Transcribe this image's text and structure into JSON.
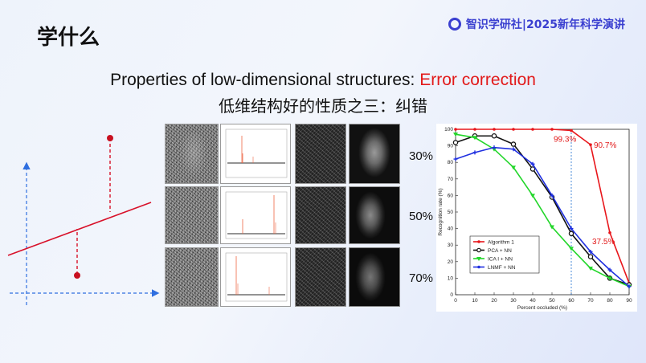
{
  "header": {
    "title": "学什么",
    "logo_text": "智识学研社|2025新年科学演讲"
  },
  "headline": {
    "prefix": "Properties of low-dimensional structures: ",
    "highlight": "Error correction",
    "subtitle": "低维结构好的性质之三：纠错"
  },
  "rows": [
    {
      "label": "30%"
    },
    {
      "label": "50%"
    },
    {
      "label": "70%"
    }
  ],
  "colors": {
    "accent_red": "#e21a1a",
    "logo_blue": "#3a3fd0",
    "diagram_blue": "#2f6fe0",
    "diagram_red": "#d8112a"
  },
  "chart_data": {
    "type": "line",
    "xlabel": "Percent occluded (%)",
    "ylabel": "Recognition rate (%)",
    "x": [
      0,
      10,
      20,
      30,
      40,
      50,
      60,
      70,
      80,
      90
    ],
    "xlim": [
      0,
      90
    ],
    "ylim": [
      0,
      100
    ],
    "xticks": [
      "0",
      "10",
      "20",
      "30",
      "40",
      "50",
      "60",
      "70",
      "80",
      "90"
    ],
    "yticks": [
      "0",
      "10",
      "20",
      "30",
      "40",
      "50",
      "60",
      "70",
      "80",
      "90",
      "100"
    ],
    "legend_position": "bottom-left",
    "series": [
      {
        "name": "Algorithm 1",
        "color": "#e8161b",
        "marker": "dot",
        "values": [
          100,
          100,
          100,
          100,
          100,
          100,
          99.3,
          90.7,
          37.5,
          7
        ]
      },
      {
        "name": "PCA + NN",
        "color": "#111111",
        "marker": "circle",
        "values": [
          92,
          96,
          96,
          91,
          76,
          59,
          37,
          23,
          10,
          6
        ]
      },
      {
        "name": "ICA I + NN",
        "color": "#22d62a",
        "marker": "triangle",
        "values": [
          97,
          95,
          88,
          77,
          60,
          41,
          28,
          16,
          10,
          5
        ]
      },
      {
        "name": "LNMF + NN",
        "color": "#1f2fe0",
        "marker": "star",
        "values": [
          82,
          86,
          89,
          88,
          79,
          60,
          40,
          26,
          15,
          5
        ]
      }
    ],
    "annotations": [
      {
        "text": "99.3%",
        "x": 60,
        "y": 99.3,
        "color": "#e21a1a"
      },
      {
        "text": "90.7%",
        "x": 70,
        "y": 90.7,
        "color": "#e21a1a"
      },
      {
        "text": "37.5%",
        "x": 80,
        "y": 37.5,
        "color": "#e21a1a"
      }
    ],
    "reference_line": {
      "x": 60
    }
  }
}
